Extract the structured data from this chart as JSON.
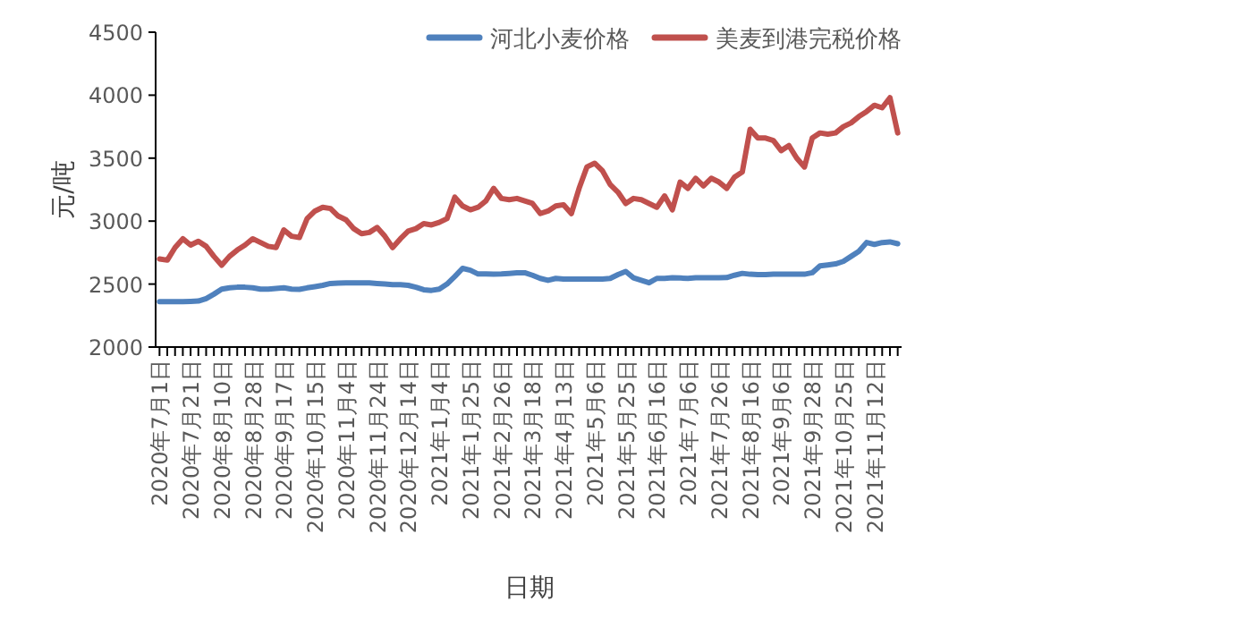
{
  "chart_data": {
    "type": "line",
    "xlabel": "日期",
    "ylabel": "元/吨",
    "legend": "top right",
    "marker": "none",
    "line_style": "solid",
    "grid": false,
    "categories": [
      "2020年7月1日",
      null,
      null,
      null,
      "2020年7月21日",
      null,
      null,
      null,
      "2020年8月10日",
      null,
      null,
      null,
      "2020年8月28日",
      null,
      null,
      null,
      "2020年9月17日",
      null,
      null,
      null,
      "2020年10月15日",
      null,
      null,
      null,
      "2020年11月4日",
      null,
      null,
      null,
      "2020年11月24日",
      null,
      null,
      null,
      "2020年12月14日",
      null,
      null,
      null,
      "2021年1月4日",
      null,
      null,
      null,
      "2021年1月25日",
      null,
      null,
      null,
      "2021年2月26日",
      null,
      null,
      null,
      "2021年3月18日",
      null,
      null,
      null,
      "2021年4月13日",
      null,
      null,
      null,
      "2021年5月6日",
      null,
      null,
      null,
      "2021年5月25日",
      null,
      null,
      null,
      "2021年6月16日",
      null,
      null,
      null,
      "2021年7月6日",
      null,
      null,
      null,
      "2021年7月26日",
      null,
      null,
      null,
      "2021年8月16日",
      null,
      null,
      null,
      "2021年9月6日",
      null,
      null,
      null,
      "2021年9月28日",
      null,
      null,
      null,
      "2021年10月25日",
      null,
      null,
      null,
      "2021年11月12日",
      null,
      null,
      null
    ],
    "ylim": [
      2000,
      4500
    ],
    "yticks": [
      2000,
      2500,
      3000,
      3500,
      4000,
      4500
    ],
    "series": [
      {
        "name": "河北小麦价格",
        "color": "#4f81bd",
        "values": [
          2360,
          2360,
          2360,
          2360,
          2362,
          2365,
          2385,
          2420,
          2460,
          2470,
          2475,
          2475,
          2470,
          2460,
          2460,
          2465,
          2470,
          2460,
          2458,
          2470,
          2480,
          2490,
          2505,
          2508,
          2510,
          2510,
          2510,
          2510,
          2505,
          2500,
          2495,
          2495,
          2490,
          2475,
          2455,
          2450,
          2460,
          2500,
          2560,
          2625,
          2610,
          2580,
          2580,
          2578,
          2580,
          2585,
          2590,
          2590,
          2570,
          2545,
          2530,
          2545,
          2540,
          2540,
          2540,
          2540,
          2540,
          2540,
          2545,
          2575,
          2600,
          2550,
          2530,
          2510,
          2545,
          2545,
          2550,
          2548,
          2545,
          2550,
          2550,
          2550,
          2550,
          2552,
          2570,
          2585,
          2578,
          2575,
          2575,
          2578,
          2578,
          2578,
          2578,
          2578,
          2590,
          2645,
          2652,
          2660,
          2680,
          2720,
          2760,
          2830,
          2815,
          2830,
          2835,
          2820
        ]
      },
      {
        "name": "美麦到港完税价格",
        "color": "#c0504d",
        "values": [
          2700,
          2690,
          2790,
          2860,
          2810,
          2840,
          2800,
          2720,
          2650,
          2720,
          2770,
          2810,
          2860,
          2830,
          2800,
          2790,
          2930,
          2880,
          2870,
          3020,
          3080,
          3110,
          3100,
          3040,
          3010,
          2940,
          2900,
          2910,
          2950,
          2880,
          2790,
          2860,
          2920,
          2940,
          2980,
          2970,
          2990,
          3020,
          3190,
          3120,
          3090,
          3110,
          3160,
          3260,
          3180,
          3170,
          3180,
          3160,
          3140,
          3060,
          3080,
          3120,
          3130,
          3060,
          3260,
          3430,
          3460,
          3400,
          3290,
          3230,
          3140,
          3180,
          3170,
          3140,
          3110,
          3200,
          3090,
          3310,
          3260,
          3340,
          3280,
          3340,
          3310,
          3260,
          3350,
          3390,
          3730,
          3660,
          3660,
          3640,
          3560,
          3600,
          3500,
          3430,
          3660,
          3700,
          3690,
          3700,
          3750,
          3780,
          3830,
          3870,
          3920,
          3900,
          3980,
          3700
        ]
      }
    ]
  }
}
